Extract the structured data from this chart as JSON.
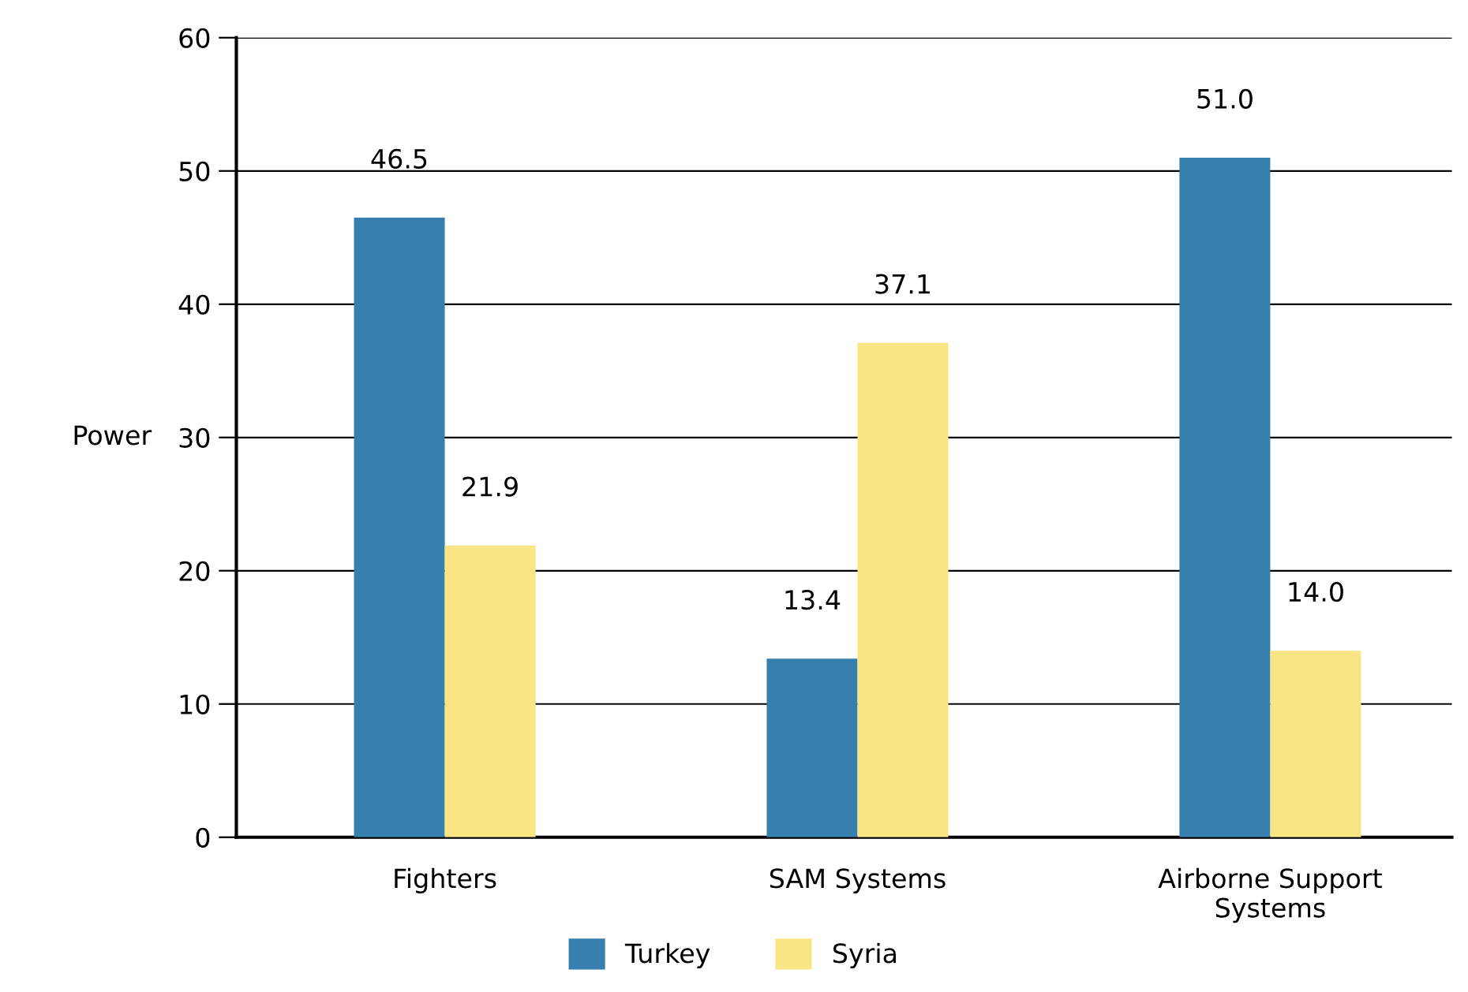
{
  "chart_data": {
    "type": "bar",
    "ylabel": "Power",
    "categories": [
      "Fighters",
      "SAM Systems",
      "Airborne Support\nSystems"
    ],
    "series": [
      {
        "name": "Turkey",
        "color": "#367fae",
        "values": [
          46.5,
          13.4,
          51.0
        ],
        "value_labels": [
          "46.5",
          "13.4",
          "51.0"
        ]
      },
      {
        "name": "Syria",
        "color": "#fae584",
        "values": [
          21.9,
          37.1,
          14.0
        ],
        "value_labels": [
          "21.9",
          "37.1",
          "14.0"
        ]
      }
    ],
    "ylim": [
      0,
      60
    ],
    "yticks": [
      0,
      10,
      20,
      30,
      40,
      50,
      60
    ],
    "grid": "y",
    "legend": "bottom"
  }
}
